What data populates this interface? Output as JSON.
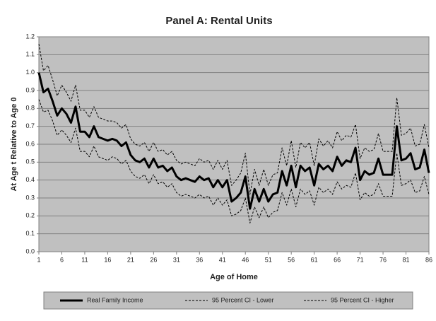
{
  "chart_data": {
    "type": "line",
    "title": "Panel A: Rental Units",
    "x_label": "Age of Home",
    "y_label": "At Age t Relative to Age 0",
    "x": [
      1,
      2,
      3,
      4,
      5,
      6,
      7,
      8,
      9,
      10,
      11,
      12,
      13,
      14,
      15,
      16,
      17,
      18,
      19,
      20,
      21,
      22,
      23,
      24,
      25,
      26,
      27,
      28,
      29,
      30,
      31,
      32,
      33,
      34,
      35,
      36,
      37,
      38,
      39,
      40,
      41,
      42,
      43,
      44,
      45,
      46,
      47,
      48,
      49,
      50,
      51,
      52,
      53,
      54,
      55,
      56,
      57,
      58,
      59,
      60,
      61,
      62,
      63,
      64,
      65,
      66,
      67,
      68,
      69,
      70,
      71,
      72,
      73,
      74,
      75,
      76,
      77,
      78,
      79,
      80,
      81,
      82,
      83,
      84,
      85,
      86
    ],
    "series": [
      {
        "name": "Real Family Income",
        "color": "#000000",
        "style": "solid",
        "values": [
          1.0,
          0.89,
          0.91,
          0.84,
          0.76,
          0.8,
          0.77,
          0.72,
          0.81,
          0.67,
          0.67,
          0.64,
          0.7,
          0.64,
          0.63,
          0.62,
          0.63,
          0.62,
          0.59,
          0.61,
          0.54,
          0.51,
          0.5,
          0.52,
          0.47,
          0.52,
          0.47,
          0.48,
          0.45,
          0.47,
          0.42,
          0.4,
          0.41,
          0.4,
          0.39,
          0.42,
          0.4,
          0.41,
          0.36,
          0.4,
          0.36,
          0.4,
          0.28,
          0.3,
          0.33,
          0.42,
          0.24,
          0.35,
          0.28,
          0.35,
          0.28,
          0.32,
          0.33,
          0.45,
          0.37,
          0.48,
          0.36,
          0.48,
          0.45,
          0.47,
          0.37,
          0.49,
          0.46,
          0.48,
          0.45,
          0.53,
          0.48,
          0.51,
          0.5,
          0.58,
          0.4,
          0.45,
          0.43,
          0.44,
          0.52,
          0.43,
          0.43,
          0.43,
          0.7,
          0.51,
          0.52,
          0.55,
          0.46,
          0.47,
          0.57,
          0.44
        ]
      },
      {
        "name": "95 Percent CI - Lower",
        "color": "#000000",
        "style": "dashed",
        "values": [
          0.85,
          0.78,
          0.79,
          0.73,
          0.65,
          0.68,
          0.65,
          0.61,
          0.69,
          0.56,
          0.56,
          0.53,
          0.59,
          0.53,
          0.52,
          0.51,
          0.53,
          0.52,
          0.49,
          0.51,
          0.45,
          0.42,
          0.41,
          0.43,
          0.38,
          0.43,
          0.38,
          0.39,
          0.36,
          0.38,
          0.33,
          0.31,
          0.32,
          0.31,
          0.3,
          0.32,
          0.3,
          0.31,
          0.26,
          0.3,
          0.26,
          0.29,
          0.2,
          0.21,
          0.23,
          0.3,
          0.16,
          0.25,
          0.19,
          0.25,
          0.19,
          0.22,
          0.23,
          0.33,
          0.26,
          0.35,
          0.25,
          0.35,
          0.32,
          0.34,
          0.26,
          0.36,
          0.33,
          0.35,
          0.32,
          0.39,
          0.35,
          0.37,
          0.36,
          0.44,
          0.29,
          0.33,
          0.31,
          0.32,
          0.38,
          0.31,
          0.31,
          0.31,
          0.55,
          0.37,
          0.38,
          0.4,
          0.33,
          0.34,
          0.42,
          0.32
        ]
      },
      {
        "name": "95 Percent CI - Higher",
        "color": "#000000",
        "style": "dashed",
        "values": [
          1.16,
          1.01,
          1.04,
          0.96,
          0.87,
          0.93,
          0.89,
          0.84,
          0.93,
          0.79,
          0.79,
          0.75,
          0.81,
          0.75,
          0.74,
          0.73,
          0.73,
          0.72,
          0.69,
          0.71,
          0.63,
          0.6,
          0.59,
          0.61,
          0.56,
          0.61,
          0.56,
          0.57,
          0.54,
          0.56,
          0.51,
          0.49,
          0.5,
          0.49,
          0.48,
          0.52,
          0.5,
          0.51,
          0.46,
          0.51,
          0.46,
          0.51,
          0.37,
          0.4,
          0.44,
          0.55,
          0.32,
          0.46,
          0.37,
          0.46,
          0.37,
          0.43,
          0.44,
          0.58,
          0.48,
          0.62,
          0.47,
          0.61,
          0.58,
          0.61,
          0.48,
          0.63,
          0.59,
          0.62,
          0.58,
          0.67,
          0.62,
          0.65,
          0.64,
          0.71,
          0.52,
          0.58,
          0.56,
          0.57,
          0.66,
          0.56,
          0.56,
          0.56,
          0.86,
          0.65,
          0.66,
          0.69,
          0.59,
          0.6,
          0.71,
          0.58
        ]
      }
    ],
    "xlim": [
      1,
      86
    ],
    "xticks": [
      1,
      6,
      11,
      16,
      21,
      26,
      31,
      36,
      41,
      46,
      51,
      56,
      61,
      66,
      71,
      76,
      81,
      86
    ],
    "ylim": [
      0,
      1.2
    ],
    "yticks": [
      {
        "value": 0,
        "label": "0.0"
      },
      0.1,
      0.2,
      0.3,
      0.4,
      0.5,
      0.6,
      0.7,
      0.8,
      0.9,
      {
        "value": 1,
        "label": "1.0"
      },
      1.1,
      1.2
    ],
    "grid": true,
    "legend": "bottom"
  }
}
